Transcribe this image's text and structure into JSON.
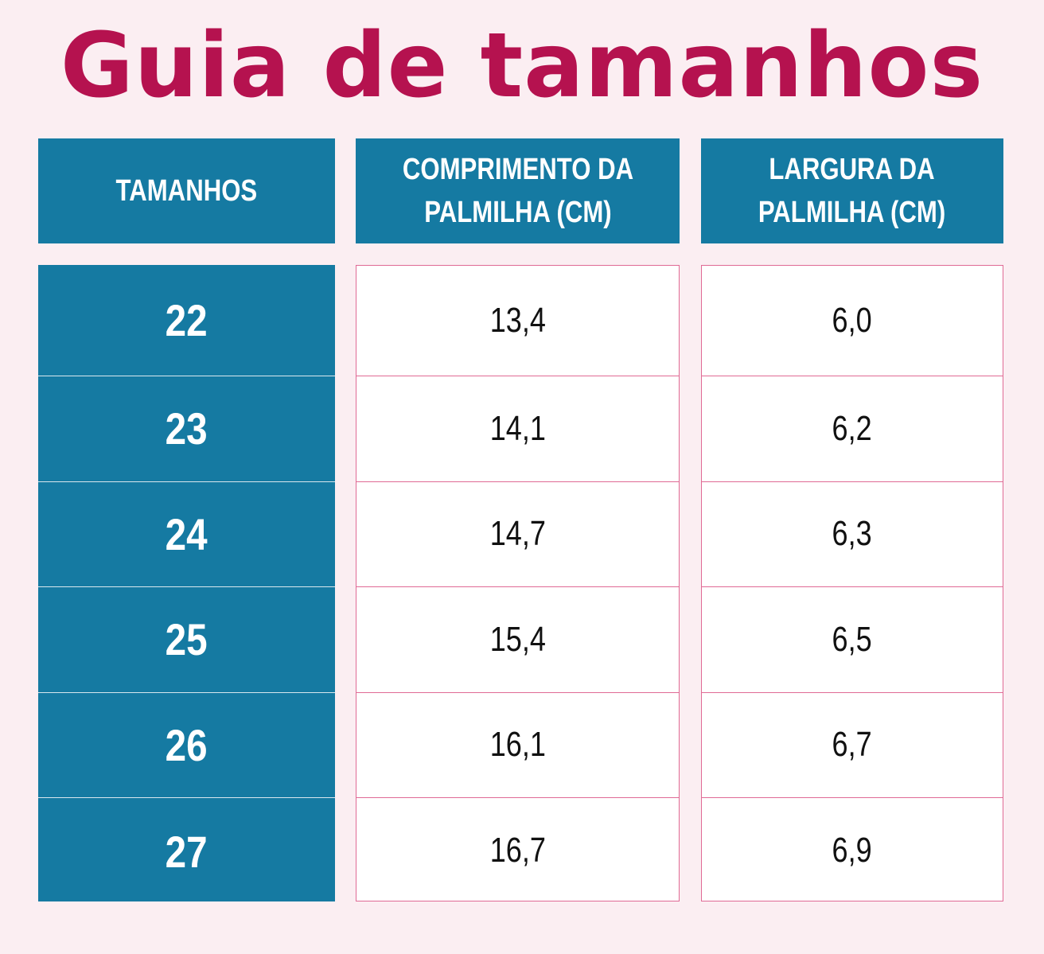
{
  "title": "Guia de tamanhos",
  "headers": {
    "sizes": "TAMANHOS",
    "length_line1": "COMPRIMENTO DA",
    "length_line2": "PALMILHA (CM)",
    "width_line1": "LARGURA DA",
    "width_line2": "PALMILHA (CM)"
  },
  "rows": [
    {
      "size": "22",
      "length": "13,4",
      "width": "6,0"
    },
    {
      "size": "23",
      "length": "14,1",
      "width": "6,2"
    },
    {
      "size": "24",
      "length": "14,7",
      "width": "6,3"
    },
    {
      "size": "25",
      "length": "15,4",
      "width": "6,5"
    },
    {
      "size": "26",
      "length": "16,1",
      "width": "6,7"
    },
    {
      "size": "27",
      "length": "16,7",
      "width": "6,9"
    }
  ],
  "colors": {
    "title": "#b5124f",
    "header_bg": "#157aa2",
    "cell_border": "#e06a95",
    "page_bg": "#fbeef2"
  }
}
